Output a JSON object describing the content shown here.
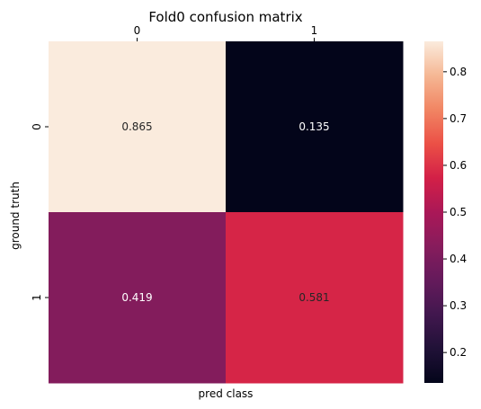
{
  "chart_data": {
    "type": "heatmap",
    "title": "Fold0 confusion matrix",
    "xlabel": "pred class",
    "ylabel": "ground truth",
    "x_categories": [
      "0",
      "1"
    ],
    "y_categories": [
      "0",
      "1"
    ],
    "values": [
      [
        0.865,
        0.135
      ],
      [
        0.419,
        0.581
      ]
    ],
    "value_labels": [
      [
        "0.865",
        "0.135"
      ],
      [
        "0.419",
        "0.581"
      ]
    ],
    "x_tick_position": "top",
    "colormap": "rocket",
    "colorbar": {
      "vmin": 0.135,
      "vmax": 0.865,
      "ticks": [
        0.2,
        0.3,
        0.4,
        0.5,
        0.6,
        0.7,
        0.8
      ],
      "tick_labels": [
        "0.2",
        "0.3",
        "0.4",
        "0.5",
        "0.6",
        "0.7",
        "0.8"
      ]
    },
    "grid": false
  }
}
